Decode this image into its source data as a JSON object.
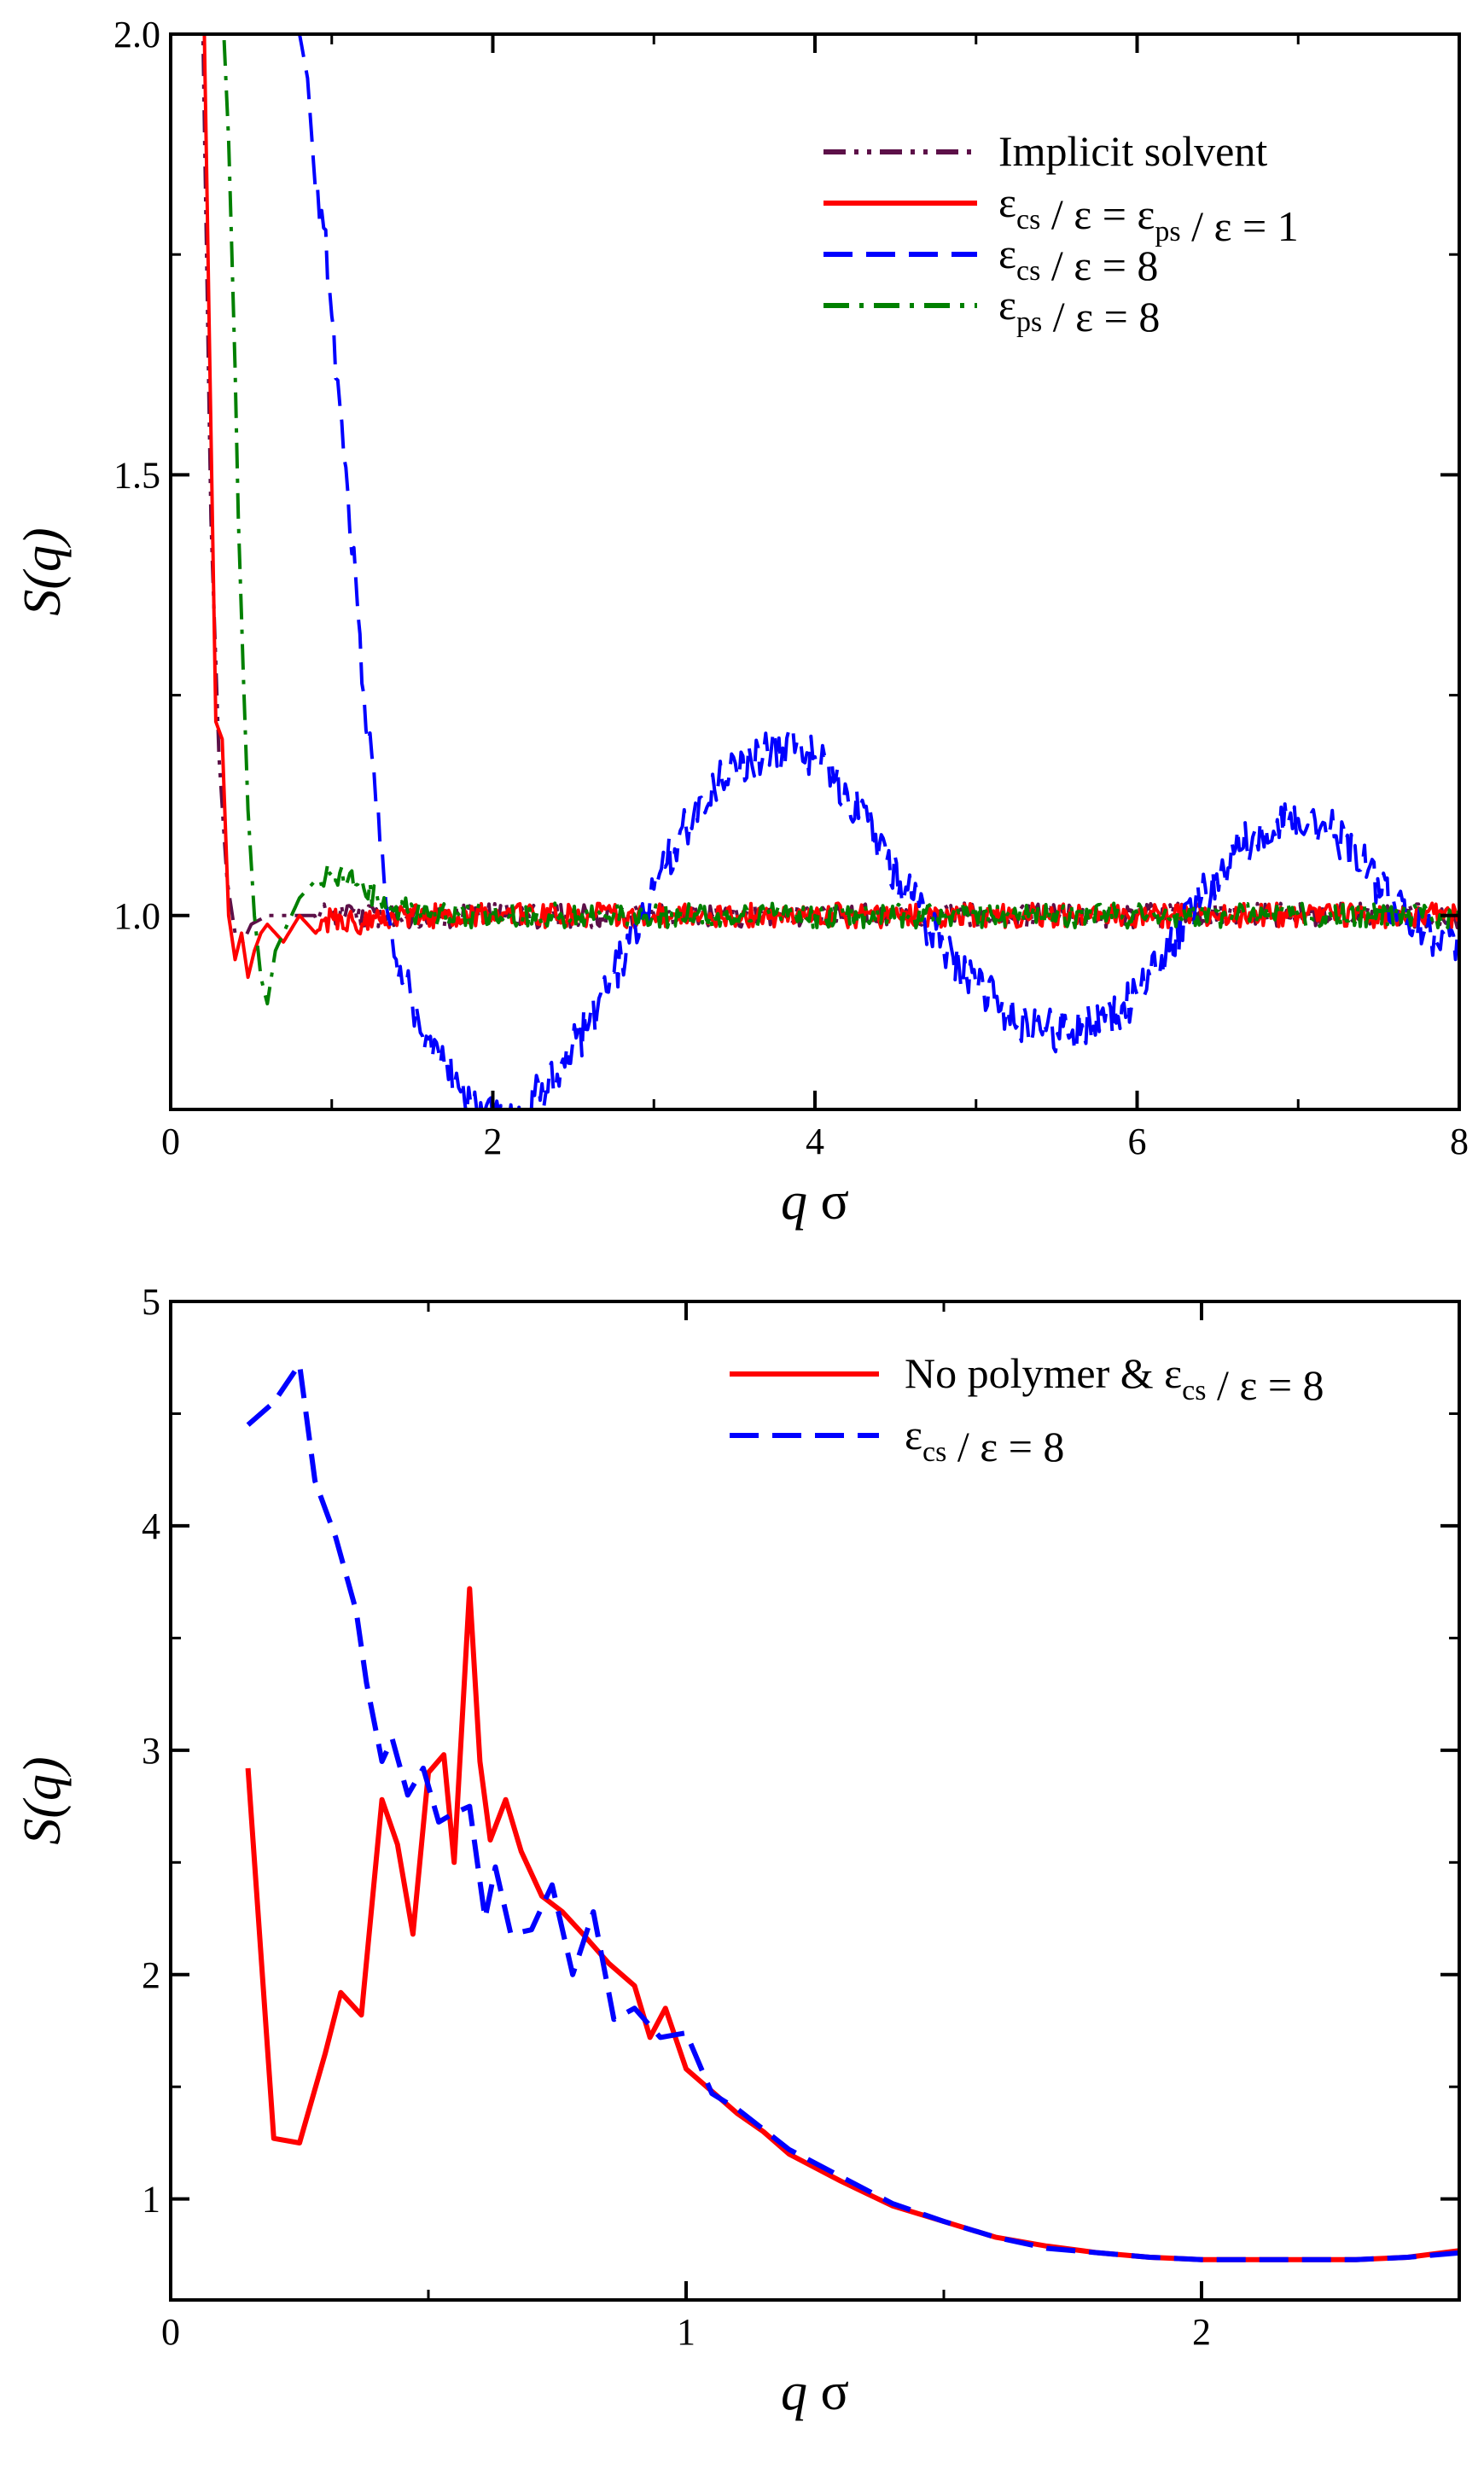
{
  "chart_data": [
    {
      "type": "line",
      "name": "top-panel",
      "xlabel_var": "q",
      "xlabel_sym": "σ",
      "ylabel_func": "S(",
      "ylabel_var": "q",
      "ylabel_close": ")",
      "xlim": [
        0,
        8
      ],
      "ylim": [
        0.78,
        2.0
      ],
      "xticks": [
        0,
        2,
        4,
        6,
        8
      ],
      "xtick_labels": [
        "0",
        "2",
        "4",
        "6",
        "8"
      ],
      "yticks": [
        1.0,
        1.5,
        2.0
      ],
      "ytick_labels": [
        "1.0",
        "1.5",
        "2.0"
      ],
      "legend_position": "top-right",
      "series": [
        {
          "name": "Implicit solvent",
          "color": "#5c1048",
          "dash": "dashdotdot",
          "legend": [
            {
              "t": "Implicit solvent"
            }
          ],
          "x": [
            0.15,
            0.2,
            0.25,
            0.3,
            0.35,
            0.4,
            0.45,
            0.5,
            0.6,
            0.8,
            1.0,
            2.0,
            3.0,
            4.0,
            5.0,
            6.0,
            7.0,
            8.0
          ],
          "y": [
            3.0,
            2.0,
            1.45,
            1.18,
            1.04,
            0.98,
            0.97,
            0.99,
            1.0,
            1.0,
            1.0,
            1.0,
            1.0,
            1.0,
            1.0,
            1.0,
            1.0,
            1.0
          ]
        },
        {
          "name": "eps_cs = eps_ps = 1",
          "color": "#ff0000",
          "dash": "solid",
          "legend": [
            {
              "t": "ε"
            },
            {
              "t": "cs",
              "sub": true
            },
            {
              "t": " / ε = ε"
            },
            {
              "t": "ps",
              "sub": true
            },
            {
              "t": " / ε = 1"
            }
          ],
          "x": [
            0.15,
            0.2,
            0.25,
            0.28,
            0.32,
            0.36,
            0.4,
            0.44,
            0.48,
            0.52,
            0.56,
            0.6,
            0.7,
            0.8,
            0.9,
            1.0,
            1.2,
            1.5,
            2.0,
            3.0,
            4.0,
            5.0,
            6.0,
            7.0,
            8.0
          ],
          "y": [
            3.0,
            2.1,
            1.55,
            1.22,
            1.2,
            1.0,
            0.95,
            0.98,
            0.93,
            0.96,
            0.98,
            0.99,
            0.97,
            1.0,
            0.98,
            1.0,
            0.99,
            1.0,
            1.0,
            1.0,
            1.0,
            1.0,
            1.0,
            1.0,
            1.0
          ]
        },
        {
          "name": "eps_cs = 8",
          "color": "#0000ff",
          "dash": "dashed",
          "legend": [
            {
              "t": "ε"
            },
            {
              "t": "cs",
              "sub": true
            },
            {
              "t": " / ε = 8"
            }
          ],
          "x": [
            0.75,
            0.8,
            0.85,
            0.9,
            0.95,
            1.0,
            1.05,
            1.1,
            1.15,
            1.2,
            1.25,
            1.3,
            1.35,
            1.4,
            1.5,
            1.6,
            1.7,
            1.8,
            1.9,
            2.0,
            2.1,
            2.2,
            2.4,
            2.6,
            2.8,
            3.0,
            3.2,
            3.4,
            3.6,
            3.8,
            3.9,
            4.0,
            4.2,
            4.4,
            4.6,
            4.8,
            5.0,
            5.2,
            5.4,
            5.6,
            5.8,
            6.0,
            6.2,
            6.4,
            6.6,
            6.8,
            7.0,
            7.2,
            7.4,
            7.6,
            7.8,
            8.0
          ],
          "y": [
            2.2,
            2.0,
            1.95,
            1.82,
            1.78,
            1.68,
            1.58,
            1.48,
            1.38,
            1.25,
            1.18,
            1.08,
            1.0,
            0.95,
            0.9,
            0.86,
            0.83,
            0.8,
            0.78,
            0.77,
            0.77,
            0.78,
            0.82,
            0.88,
            0.95,
            1.03,
            1.1,
            1.15,
            1.18,
            1.19,
            1.19,
            1.18,
            1.14,
            1.08,
            1.02,
            0.96,
            0.92,
            0.89,
            0.87,
            0.87,
            0.88,
            0.91,
            0.96,
            1.02,
            1.07,
            1.1,
            1.11,
            1.1,
            1.06,
            1.01,
            0.98,
            0.97
          ]
        },
        {
          "name": "eps_ps = 8",
          "color": "#008000",
          "dash": "dashdot",
          "legend": [
            {
              "t": "ε"
            },
            {
              "t": "ps",
              "sub": true
            },
            {
              "t": " / ε = 8"
            }
          ],
          "x": [
            0.3,
            0.33,
            0.36,
            0.4,
            0.42,
            0.45,
            0.48,
            0.52,
            0.56,
            0.6,
            0.65,
            0.7,
            0.75,
            0.8,
            0.9,
            1.0,
            1.1,
            1.2,
            1.3,
            1.4,
            1.6,
            2.0,
            3.0,
            4.0,
            5.0,
            6.0,
            7.0,
            8.0
          ],
          "y": [
            2.05,
            2.0,
            1.88,
            1.62,
            1.45,
            1.28,
            1.12,
            1.0,
            0.93,
            0.9,
            0.96,
            0.98,
            1.0,
            1.02,
            1.04,
            1.05,
            1.04,
            1.03,
            1.02,
            1.01,
            1.0,
            1.0,
            1.0,
            1.0,
            1.0,
            1.0,
            1.0,
            1.0
          ]
        }
      ]
    },
    {
      "type": "line",
      "name": "bottom-panel",
      "xlabel_var": "q",
      "xlabel_sym": "σ",
      "ylabel_func": "S(",
      "ylabel_var": "q",
      "ylabel_close": ")",
      "xlim": [
        0,
        2.5
      ],
      "ylim": [
        0.55,
        5.0
      ],
      "xticks": [
        0,
        1,
        2
      ],
      "xtick_labels": [
        "0",
        "1",
        "2"
      ],
      "yticks": [
        1,
        2,
        3,
        4,
        5
      ],
      "ytick_labels": [
        "1",
        "2",
        "3",
        "4",
        "5"
      ],
      "legend_position": "top-right",
      "series": [
        {
          "name": "No polymer & eps_cs = 8",
          "color": "#ff0000",
          "dash": "solid",
          "legend": [
            {
              "t": "No polymer & ε"
            },
            {
              "t": "cs",
              "sub": true
            },
            {
              "t": " / ε = 8"
            }
          ],
          "x": [
            0.15,
            0.2,
            0.25,
            0.3,
            0.33,
            0.37,
            0.41,
            0.44,
            0.47,
            0.5,
            0.53,
            0.55,
            0.58,
            0.6,
            0.62,
            0.65,
            0.68,
            0.72,
            0.76,
            0.8,
            0.85,
            0.9,
            0.93,
            0.96,
            1.0,
            1.05,
            1.1,
            1.15,
            1.2,
            1.3,
            1.4,
            1.5,
            1.6,
            1.7,
            1.8,
            1.9,
            2.0,
            2.1,
            2.2,
            2.3,
            2.4,
            2.5
          ],
          "y": [
            2.92,
            1.27,
            1.25,
            1.65,
            1.92,
            1.82,
            2.78,
            2.58,
            2.18,
            2.9,
            2.98,
            2.5,
            3.72,
            2.95,
            2.6,
            2.78,
            2.55,
            2.35,
            2.28,
            2.18,
            2.05,
            1.95,
            1.72,
            1.85,
            1.58,
            1.48,
            1.38,
            1.3,
            1.2,
            1.08,
            0.97,
            0.9,
            0.83,
            0.79,
            0.76,
            0.74,
            0.73,
            0.73,
            0.73,
            0.73,
            0.74,
            0.77
          ]
        },
        {
          "name": "eps_cs = 8",
          "color": "#0000ff",
          "dash": "dashed",
          "legend": [
            {
              "t": "ε"
            },
            {
              "t": "cs",
              "sub": true
            },
            {
              "t": " / ε = 8"
            }
          ],
          "x": [
            0.15,
            0.2,
            0.25,
            0.28,
            0.32,
            0.36,
            0.38,
            0.41,
            0.43,
            0.46,
            0.49,
            0.52,
            0.55,
            0.58,
            0.61,
            0.63,
            0.66,
            0.7,
            0.74,
            0.78,
            0.82,
            0.86,
            0.9,
            0.95,
            1.0,
            1.05,
            1.1,
            1.2,
            1.3,
            1.4,
            1.5,
            1.6,
            1.7,
            1.8,
            1.9,
            2.0,
            2.1,
            2.2,
            2.3,
            2.4,
            2.5
          ],
          "y": [
            4.45,
            4.55,
            4.72,
            4.2,
            3.95,
            3.62,
            3.3,
            2.95,
            3.05,
            2.8,
            2.92,
            2.68,
            2.72,
            2.75,
            2.25,
            2.48,
            2.18,
            2.2,
            2.4,
            2.0,
            2.28,
            1.8,
            1.85,
            1.72,
            1.74,
            1.47,
            1.4,
            1.22,
            1.1,
            0.98,
            0.9,
            0.83,
            0.78,
            0.76,
            0.74,
            0.73,
            0.73,
            0.73,
            0.73,
            0.74,
            0.76
          ]
        }
      ]
    }
  ]
}
